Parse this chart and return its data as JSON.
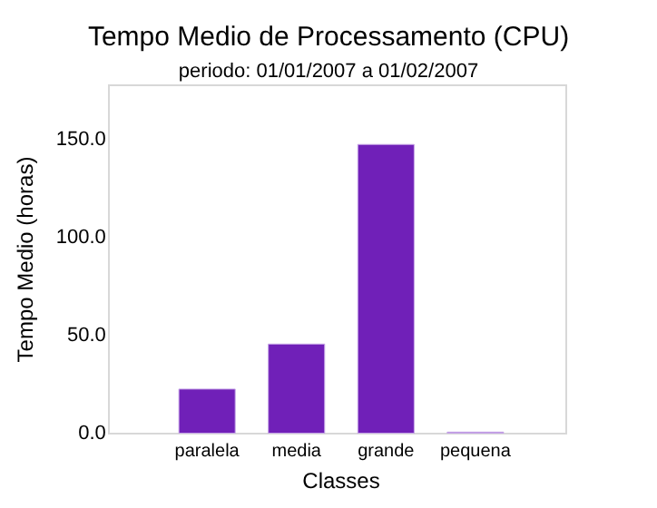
{
  "chart_data": {
    "type": "bar",
    "title": "Tempo Medio de Processamento (CPU)",
    "subtitle": "periodo: 01/01/2007 a 01/02/2007",
    "xlabel": "Classes",
    "ylabel": "Tempo Medio (horas)",
    "categories": [
      "paralela",
      "media",
      "grande",
      "pequena"
    ],
    "values": [
      23,
      46,
      148,
      1
    ],
    "color": "#7020b8",
    "ylim": [
      0,
      178
    ],
    "yticks": [
      {
        "value": 0,
        "label": "0.0"
      },
      {
        "value": 50,
        "label": "50.0"
      },
      {
        "value": 100,
        "label": "100.0"
      },
      {
        "value": 150,
        "label": "150.0"
      }
    ],
    "grid": false
  }
}
